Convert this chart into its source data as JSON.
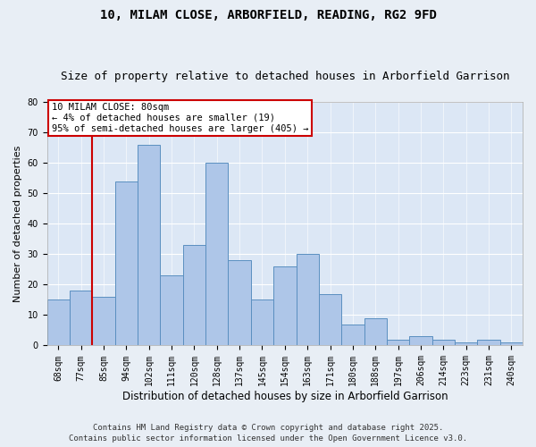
{
  "title1": "10, MILAM CLOSE, ARBORFIELD, READING, RG2 9FD",
  "title2": "Size of property relative to detached houses in Arborfield Garrison",
  "xlabel": "Distribution of detached houses by size in Arborfield Garrison",
  "ylabel": "Number of detached properties",
  "categories": [
    "68sqm",
    "77sqm",
    "85sqm",
    "94sqm",
    "102sqm",
    "111sqm",
    "120sqm",
    "128sqm",
    "137sqm",
    "145sqm",
    "154sqm",
    "163sqm",
    "171sqm",
    "180sqm",
    "188sqm",
    "197sqm",
    "206sqm",
    "214sqm",
    "223sqm",
    "231sqm",
    "240sqm"
  ],
  "values": [
    15,
    18,
    16,
    54,
    66,
    23,
    33,
    60,
    28,
    15,
    26,
    30,
    17,
    7,
    9,
    2,
    3,
    2,
    1,
    2,
    1
  ],
  "bar_color": "#aec6e8",
  "bar_edge_color": "#5a8fc0",
  "annotation_title": "10 MILAM CLOSE: 80sqm",
  "annotation_line1": "← 4% of detached houses are smaller (19)",
  "annotation_line2": "95% of semi-detached houses are larger (405) →",
  "annotation_box_color": "#ffffff",
  "annotation_box_edge_color": "#cc0000",
  "vline_color": "#cc0000",
  "ylim": [
    0,
    80
  ],
  "yticks": [
    0,
    10,
    20,
    30,
    40,
    50,
    60,
    70,
    80
  ],
  "footer1": "Contains HM Land Registry data © Crown copyright and database right 2025.",
  "footer2": "Contains public sector information licensed under the Open Government Licence v3.0.",
  "bg_color": "#e8eef5",
  "plot_bg_color": "#dce7f5",
  "title1_fontsize": 10,
  "title2_fontsize": 9,
  "xlabel_fontsize": 8.5,
  "ylabel_fontsize": 8,
  "tick_fontsize": 7,
  "footer_fontsize": 6.5,
  "annot_fontsize": 7.5
}
